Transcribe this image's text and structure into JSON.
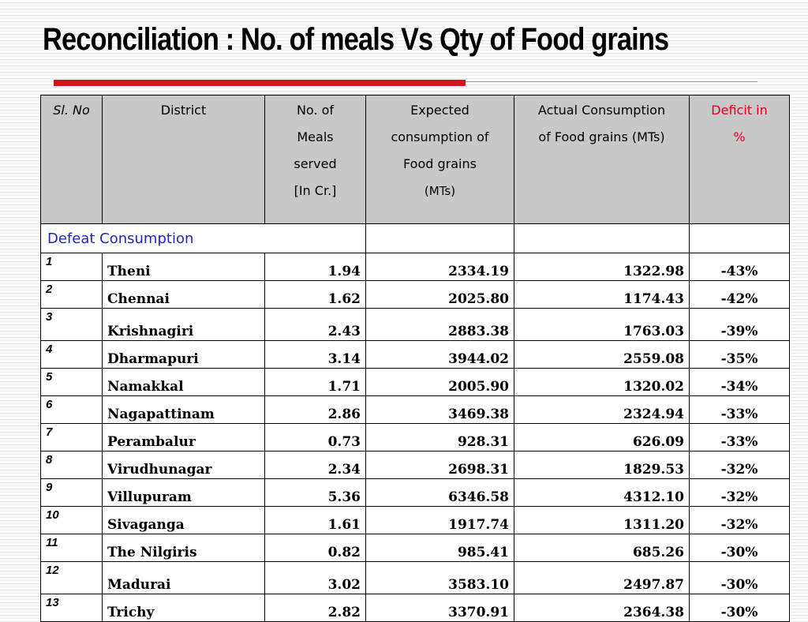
{
  "title": "Reconciliation : No. of meals Vs Qty of Food grains",
  "table": {
    "headers": {
      "sl": "Sl. No",
      "district": "District",
      "meals": [
        "No. of",
        "Meals",
        "served",
        "[In Cr.]"
      ],
      "expected": [
        "Expected",
        "consumption of",
        "Food grains",
        "(MTs)"
      ],
      "actual": [
        "Actual Consumption",
        "of Food grains (MTs)"
      ],
      "deficit": [
        "Deficit in",
        "%"
      ]
    },
    "section_label": "Defeat Consumption",
    "rows": [
      {
        "sl": "1",
        "district": "Theni",
        "meals": "1.94",
        "expected": "2334.19",
        "actual": "1322.98",
        "deficit": "-43%"
      },
      {
        "sl": "2",
        "district": "Chennai",
        "meals": "1.62",
        "expected": "2025.80",
        "actual": "1174.43",
        "deficit": "-42%"
      },
      {
        "sl": "3",
        "district": "Krishnagiri",
        "meals": "2.43",
        "expected": "2883.38",
        "actual": "1763.03",
        "deficit": "-39%"
      },
      {
        "sl": "4",
        "district": "Dharmapuri",
        "meals": "3.14",
        "expected": "3944.02",
        "actual": "2559.08",
        "deficit": "-35%"
      },
      {
        "sl": "5",
        "district": "Namakkal",
        "meals": "1.71",
        "expected": "2005.90",
        "actual": "1320.02",
        "deficit": "-34%"
      },
      {
        "sl": "6",
        "district": "Nagapattinam",
        "meals": "2.86",
        "expected": "3469.38",
        "actual": "2324.94",
        "deficit": "-33%"
      },
      {
        "sl": "7",
        "district": "Perambalur",
        "meals": "0.73",
        "expected": "928.31",
        "actual": "626.09",
        "deficit": "-33%"
      },
      {
        "sl": "8",
        "district": "Virudhunagar",
        "meals": "2.34",
        "expected": "2698.31",
        "actual": "1829.53",
        "deficit": "-32%"
      },
      {
        "sl": "9",
        "district": "Villupuram",
        "meals": "5.36",
        "expected": "6346.58",
        "actual": "4312.10",
        "deficit": "-32%"
      },
      {
        "sl": "10",
        "district": "Sivaganga",
        "meals": "1.61",
        "expected": "1917.74",
        "actual": "1311.20",
        "deficit": "-32%"
      },
      {
        "sl": "11",
        "district": "The Nilgiris",
        "meals": "0.82",
        "expected": "985.41",
        "actual": "685.26",
        "deficit": "-30%"
      },
      {
        "sl": "12",
        "district": "Madurai",
        "meals": "3.02",
        "expected": "3583.10",
        "actual": "2497.87",
        "deficit": "-30%"
      },
      {
        "sl": "13",
        "district": "Trichy",
        "meals": "2.82",
        "expected": "3370.91",
        "actual": "2364.38",
        "deficit": "-30%"
      }
    ]
  },
  "colors": {
    "accent_rule": "#d4141c",
    "header_bg": "#c8c8c8",
    "deficit_header": "#e0001a",
    "section_text": "#1b2bb8"
  }
}
